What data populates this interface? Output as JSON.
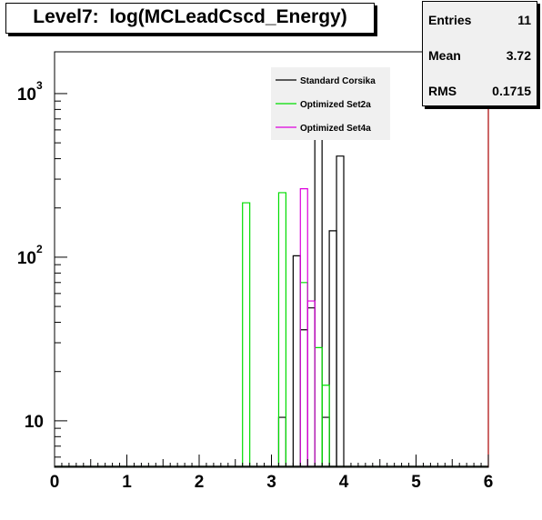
{
  "chart_data": {
    "type": "histogram",
    "title": "Level7:  log(MCLeadCscd_Energy)",
    "xlim": [
      0,
      6
    ],
    "ylim": [
      5.2,
      1800
    ],
    "yscale": "log",
    "x_ticks": [
      "0",
      "1",
      "2",
      "3",
      "4",
      "5",
      "6"
    ],
    "y_ticks": [
      {
        "value": 10,
        "base": "10",
        "exp": ""
      },
      {
        "value": 100,
        "base": "10",
        "exp": "2"
      },
      {
        "value": 1000,
        "base": "10",
        "exp": "3"
      }
    ],
    "grid": false,
    "legend_position": "top-right",
    "stats": {
      "entries_label": "Entries",
      "entries": "11",
      "mean_label": "Mean",
      "mean": "3.72",
      "rms_label": "RMS",
      "rms": "0.1715"
    },
    "series": [
      {
        "name": "Standard Corsika",
        "color": "#000000",
        "bins": [
          [
            3.1,
            3.2,
            10.5
          ],
          [
            3.3,
            3.4,
            102
          ],
          [
            3.4,
            3.5,
            36
          ],
          [
            3.5,
            3.6,
            49
          ],
          [
            3.6,
            3.7,
            1000
          ],
          [
            3.7,
            3.8,
            10.5
          ],
          [
            3.8,
            3.9,
            145
          ],
          [
            3.9,
            4.0,
            415
          ]
        ]
      },
      {
        "name": "Optimized Set2a",
        "color": "#00dd00",
        "bins": [
          [
            2.6,
            2.7,
            215
          ],
          [
            3.1,
            3.2,
            248
          ],
          [
            3.4,
            3.5,
            70
          ],
          [
            3.6,
            3.7,
            28
          ],
          [
            3.7,
            3.8,
            16.5
          ]
        ]
      },
      {
        "name": "Optimized Set4a",
        "color": "#dd00dd",
        "bins": [
          [
            3.4,
            3.5,
            262
          ],
          [
            3.5,
            3.6,
            54
          ]
        ]
      }
    ]
  }
}
